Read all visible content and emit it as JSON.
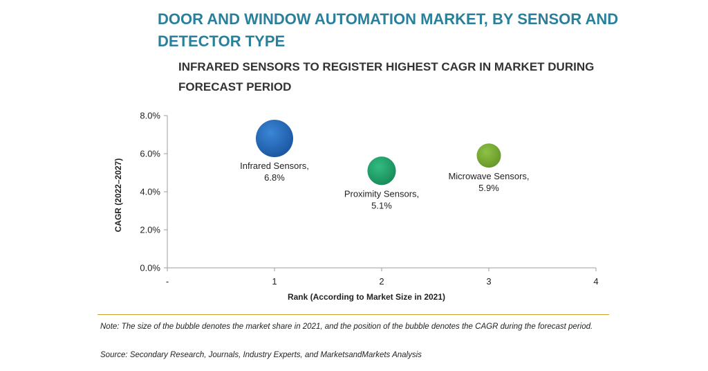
{
  "header": {
    "title": "DOOR AND WINDOW AUTOMATION MARKET, BY SENSOR AND DETECTOR TYPE",
    "subtitle": "INFRARED SENSORS TO REGISTER HIGHEST CAGR IN MARKET DURING FORECAST PERIOD"
  },
  "chart_data": {
    "type": "scatter",
    "variant": "bubble",
    "xlabel": "Rank (According to Market Size in 2021)",
    "ylabel": "CAGR (2022–2027)",
    "xlim": [
      0,
      4
    ],
    "ylim": [
      0,
      8
    ],
    "x_tick_labels": [
      "-",
      "1",
      "2",
      "3",
      "4"
    ],
    "y_tick_labels": [
      "0.0%",
      "2.0%",
      "4.0%",
      "6.0%",
      "8.0%"
    ],
    "grid": false,
    "points": [
      {
        "name": "Infrared Sensors,",
        "value_label": "6.8%",
        "x": 1,
        "y": 6.8,
        "size": 1.0,
        "color": "#1f63b5"
      },
      {
        "name": "Proximity Sensors,",
        "value_label": "5.1%",
        "x": 2,
        "y": 5.1,
        "size": 0.58,
        "color": "#20a06a"
      },
      {
        "name": "Microwave Sensors,",
        "value_label": "5.9%",
        "x": 3,
        "y": 5.9,
        "size": 0.42,
        "color": "#76a830"
      }
    ]
  },
  "footer": {
    "note": "Note: The size of the bubble denotes the market share in 2021, and the position of the bubble denotes the CAGR during the forecast period.",
    "source": "Source: Secondary Research, Journals, Industry Experts, and MarketsandMarkets Analysis"
  },
  "colors": {
    "title": "#2a7f9a",
    "divider": "#c9a227",
    "axis": "#9e9e9e"
  }
}
